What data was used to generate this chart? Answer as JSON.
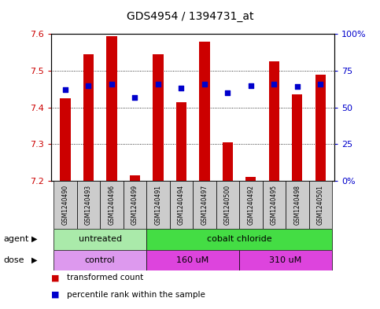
{
  "title": "GDS4954 / 1394731_at",
  "samples": [
    "GSM1240490",
    "GSM1240493",
    "GSM1240496",
    "GSM1240499",
    "GSM1240491",
    "GSM1240494",
    "GSM1240497",
    "GSM1240500",
    "GSM1240492",
    "GSM1240495",
    "GSM1240498",
    "GSM1240501"
  ],
  "bar_values": [
    7.425,
    7.545,
    7.595,
    7.215,
    7.545,
    7.415,
    7.58,
    7.305,
    7.21,
    7.525,
    7.435,
    7.49
  ],
  "bar_base": 7.2,
  "percentile_values": [
    62,
    65,
    66,
    57,
    66,
    63,
    66,
    60,
    65,
    66,
    64,
    66
  ],
  "ylim_left": [
    7.2,
    7.6
  ],
  "ylim_right": [
    0,
    100
  ],
  "yticks_left": [
    7.2,
    7.3,
    7.4,
    7.5,
    7.6
  ],
  "yticks_right": [
    0,
    25,
    50,
    75,
    100
  ],
  "bar_color": "#cc0000",
  "dot_color": "#0000cc",
  "background_color": "#ffffff",
  "agent_groups": [
    {
      "label": "untreated",
      "start": 0,
      "end": 4,
      "color": "#aaeaaa"
    },
    {
      "label": "cobalt chloride",
      "start": 4,
      "end": 12,
      "color": "#44dd44"
    }
  ],
  "dose_colors": [
    "#dd99ee",
    "#dd44dd",
    "#dd44dd"
  ],
  "dose_groups": [
    {
      "label": "control",
      "start": 0,
      "end": 4
    },
    {
      "label": "160 uM",
      "start": 4,
      "end": 8
    },
    {
      "label": "310 uM",
      "start": 8,
      "end": 12
    }
  ],
  "legend_items": [
    {
      "label": "transformed count",
      "color": "#cc0000"
    },
    {
      "label": "percentile rank within the sample",
      "color": "#0000cc"
    }
  ],
  "tick_color_left": "#cc0000",
  "tick_color_right": "#0000cc",
  "sample_box_color": "#cccccc",
  "bar_width": 0.45
}
